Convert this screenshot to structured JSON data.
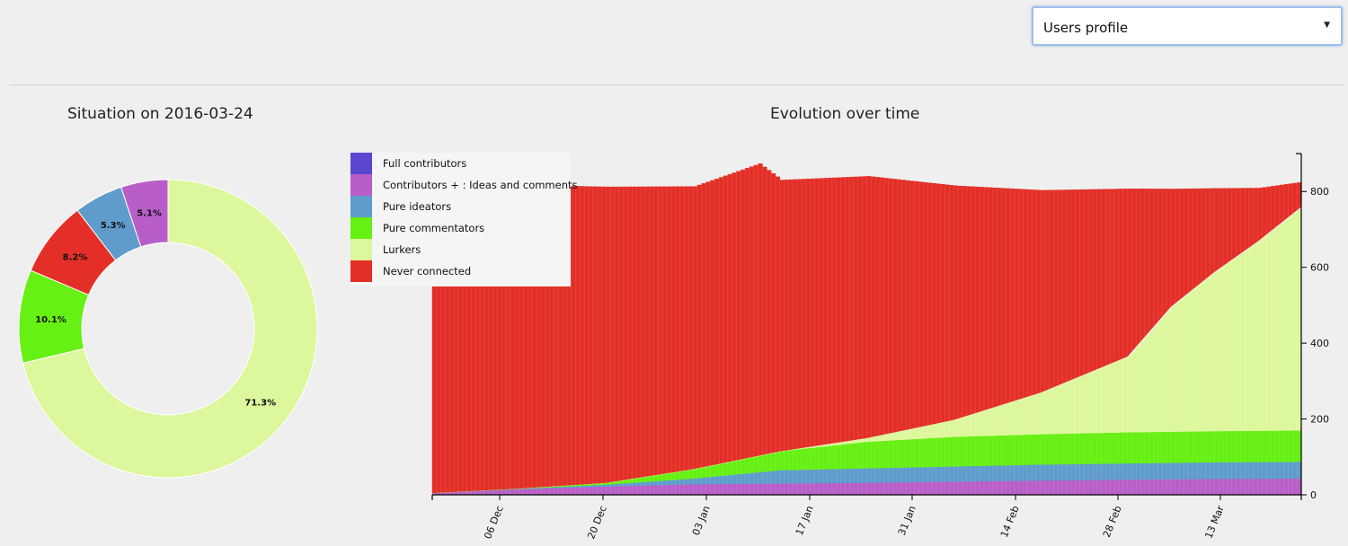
{
  "selector": {
    "value": "Users profile"
  },
  "chart_data": [
    {
      "type": "pie",
      "title": "Situation on 2016-03-24",
      "donut": true,
      "slices": [
        {
          "name": "Lurkers",
          "value": 71.3,
          "label": "71.3%",
          "color": "#ddf79c"
        },
        {
          "name": "Pure commentators",
          "value": 10.1,
          "label": "10.1%",
          "color": "#66f013"
        },
        {
          "name": "Never connected",
          "value": 8.2,
          "label": "8.2%",
          "color": "#e32f27"
        },
        {
          "name": "Pure ideators",
          "value": 5.3,
          "label": "5.3%",
          "color": "#5f9ccc"
        },
        {
          "name": "Contributors + : Ideas and comments",
          "value": 5.1,
          "label": "5.1%",
          "color": "#b95ec8"
        }
      ]
    },
    {
      "type": "area",
      "stacked": true,
      "title": "Evolution over time",
      "x_start": "2016-11-25",
      "x_end": "2016-03-24",
      "x_ticks": [
        "06 Dec",
        "20 Dec",
        "03 Jan",
        "17 Jan",
        "31 Jan",
        "14 Feb",
        "28 Feb",
        "13 Mar"
      ],
      "y_ticks": [
        0,
        200,
        400,
        600,
        800
      ],
      "ylim": [
        0,
        900
      ],
      "legend_position": "top-left",
      "legend": [
        {
          "name": "Full contributors",
          "color": "#5b46d2"
        },
        {
          "name": "Contributors + : Ideas and comments",
          "color": "#b95ec8"
        },
        {
          "name": "Pure ideators",
          "color": "#5f9ccc"
        },
        {
          "name": "Pure commentators",
          "color": "#66f013"
        },
        {
          "name": "Lurkers",
          "color": "#ddf79c"
        },
        {
          "name": "Never connected",
          "color": "#e32f27"
        }
      ],
      "series": [
        {
          "name": "Contributors + : Ideas and comments",
          "color": "#b95ec8",
          "points": [
            [
              0,
              5
            ],
            [
              20,
              15
            ],
            [
              40,
              22
            ],
            [
              60,
              28
            ],
            [
              80,
              30
            ],
            [
              100,
              32
            ],
            [
              120,
              35
            ],
            [
              140,
              38
            ],
            [
              160,
              40
            ],
            [
              180,
              42
            ],
            [
              200,
              43
            ]
          ]
        },
        {
          "name": "Pure ideators",
          "color": "#5f9ccc",
          "points": [
            [
              0,
              0
            ],
            [
              20,
              1
            ],
            [
              40,
              5
            ],
            [
              60,
              15
            ],
            [
              80,
              35
            ],
            [
              100,
              38
            ],
            [
              120,
              40
            ],
            [
              140,
              42
            ],
            [
              160,
              43
            ],
            [
              180,
              44
            ],
            [
              200,
              44
            ]
          ]
        },
        {
          "name": "Pure commentators",
          "color": "#66f013",
          "points": [
            [
              0,
              0
            ],
            [
              20,
              1
            ],
            [
              40,
              5
            ],
            [
              60,
              25
            ],
            [
              80,
              50
            ],
            [
              100,
              70
            ],
            [
              120,
              78
            ],
            [
              140,
              80
            ],
            [
              160,
              82
            ],
            [
              180,
              82
            ],
            [
              200,
              83
            ]
          ]
        },
        {
          "name": "Lurkers",
          "color": "#ddf79c",
          "points": [
            [
              0,
              0
            ],
            [
              20,
              0
            ],
            [
              40,
              0
            ],
            [
              60,
              0
            ],
            [
              80,
              0
            ],
            [
              100,
              10
            ],
            [
              120,
              45
            ],
            [
              140,
              110
            ],
            [
              160,
              200
            ],
            [
              170,
              330
            ],
            [
              180,
              420
            ],
            [
              190,
              500
            ],
            [
              200,
              590
            ]
          ]
        },
        {
          "name": "Never connected",
          "color": "#e32f27",
          "points": [
            [
              0,
              810
            ],
            [
              20,
              800
            ],
            [
              40,
              780
            ],
            [
              60,
              745
            ],
            [
              75,
              770
            ],
            [
              80,
              715
            ],
            [
              100,
              690
            ],
            [
              120,
              617
            ],
            [
              140,
              533
            ],
            [
              160,
              442
            ],
            [
              170,
              310
            ],
            [
              180,
              220
            ],
            [
              190,
              140
            ],
            [
              200,
              65
            ]
          ]
        }
      ]
    }
  ]
}
